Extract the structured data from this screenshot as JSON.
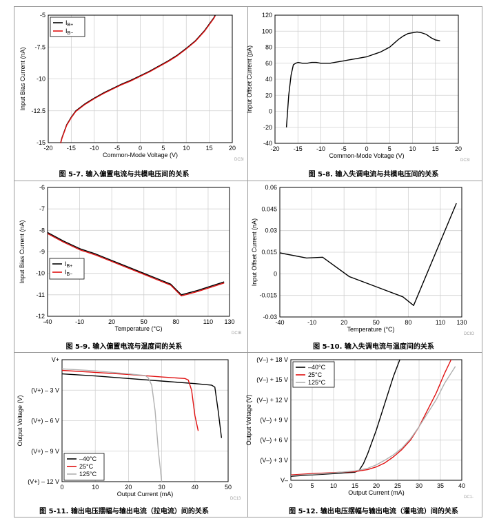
{
  "chart_data": [
    {
      "id": "c1",
      "type": "line",
      "xlabel": "Common-Mode Voltage (V)",
      "ylabel": "Input Bias Current (nA)",
      "xlim": [
        -20,
        20
      ],
      "ylim": [
        -15,
        -5
      ],
      "xticks": [
        -20,
        -15,
        -10,
        -5,
        0,
        5,
        10,
        15,
        20
      ],
      "yticks": [
        -15,
        -12.5,
        -10,
        -7.5,
        -5
      ],
      "ytick_labels": [
        "-15",
        "-12.5",
        "-10",
        "-7.5",
        "-5"
      ],
      "grid": true,
      "legend_position": "top-left",
      "code": "DC3I",
      "caption": "图 5-7. 输入偏置电流与共模电压间的关系",
      "series": [
        {
          "name": "IB+",
          "sub": "B+",
          "color": "#000000",
          "x": [
            -17.3,
            -17,
            -16,
            -15,
            -14,
            -12,
            -10,
            -8,
            -6,
            -4,
            -2,
            0,
            2,
            4,
            6,
            8,
            10,
            12,
            14,
            15,
            16,
            16.3
          ],
          "y": [
            -15,
            -14.6,
            -13.6,
            -13.0,
            -12.5,
            -11.95,
            -11.5,
            -11.1,
            -10.75,
            -10.4,
            -10.1,
            -9.75,
            -9.4,
            -9.0,
            -8.6,
            -8.15,
            -7.6,
            -7.0,
            -6.2,
            -5.7,
            -5.2,
            -5.0
          ]
        },
        {
          "name": "IB−",
          "sub": "B−",
          "color": "#e01010",
          "x": [
            -17.3,
            -17,
            -16,
            -15,
            -14,
            -12,
            -10,
            -8,
            -6,
            -4,
            -2,
            0,
            2,
            4,
            6,
            8,
            10,
            12,
            14,
            15,
            16,
            16.3
          ],
          "y": [
            -15.05,
            -14.65,
            -13.65,
            -13.05,
            -12.55,
            -12.0,
            -11.55,
            -11.15,
            -10.8,
            -10.45,
            -10.15,
            -9.8,
            -9.45,
            -9.05,
            -8.65,
            -8.2,
            -7.65,
            -7.05,
            -6.25,
            -5.75,
            -5.25,
            -5.05
          ]
        }
      ]
    },
    {
      "id": "c2",
      "type": "line",
      "xlabel": "Common-Mode Voltage (V)",
      "ylabel": "Input Offset Current (pA)",
      "xlim": [
        -20,
        20
      ],
      "ylim": [
        -40,
        120
      ],
      "xticks": [
        -20,
        -15,
        -10,
        -5,
        0,
        5,
        10,
        15,
        20
      ],
      "yticks": [
        -40,
        -20,
        0,
        20,
        40,
        60,
        80,
        100,
        120
      ],
      "ytick_labels": [
        "-40",
        "-20",
        "0",
        "20",
        "40",
        "60",
        "80",
        "100",
        "120"
      ],
      "grid": true,
      "code": "DC3I",
      "caption": "图 5-8. 输入失调电流与共模电压间的关系",
      "series": [
        {
          "color": "#000000",
          "x": [
            -17.5,
            -17,
            -16.5,
            -16,
            -15.5,
            -15,
            -14,
            -13,
            -12,
            -11,
            -10,
            -9,
            -8,
            -7,
            -6,
            -5,
            -4,
            -3,
            -2,
            -1,
            0,
            1,
            2,
            3,
            4,
            5,
            6,
            7,
            8,
            9,
            10,
            11,
            12,
            13,
            14,
            15,
            16
          ],
          "y": [
            -20,
            20,
            45,
            58,
            60,
            61,
            60,
            60,
            61,
            61,
            60,
            60,
            60,
            61,
            62,
            63,
            64,
            65,
            66,
            67,
            68,
            70,
            72,
            74,
            77,
            80,
            85,
            90,
            94,
            97,
            98,
            99,
            98,
            96,
            92,
            89,
            88
          ]
        }
      ]
    },
    {
      "id": "c3",
      "type": "line",
      "xlabel": "Temperature (°C)",
      "ylabel": "Input Bias Current (nA)",
      "xlim": [
        -40,
        130
      ],
      "ylim": [
        -12,
        -6
      ],
      "xticks": [
        -40,
        -10,
        20,
        50,
        80,
        110,
        130
      ],
      "yticks": [
        -12,
        -11,
        -10,
        -9,
        -8,
        -7,
        -6
      ],
      "ytick_labels": [
        "-12",
        "-11",
        "-10",
        "-9",
        "-8",
        "-7",
        "-6"
      ],
      "grid": true,
      "legend_position": "left",
      "code": "DCIB",
      "caption": "图 5-9. 输入偏置电流与温度间的关系",
      "series": [
        {
          "name": "IB+",
          "sub": "B+",
          "color": "#000000",
          "x": [
            -40,
            -25,
            -10,
            5,
            20,
            35,
            50,
            65,
            75,
            85,
            100,
            125
          ],
          "y": [
            -8.1,
            -8.5,
            -8.85,
            -9.1,
            -9.4,
            -9.7,
            -10.0,
            -10.3,
            -10.5,
            -11.0,
            -10.8,
            -10.4
          ]
        },
        {
          "name": "IB−",
          "sub": "B−",
          "color": "#e01010",
          "x": [
            -40,
            -25,
            -10,
            5,
            20,
            35,
            50,
            65,
            75,
            85,
            100,
            125
          ],
          "y": [
            -8.15,
            -8.55,
            -8.9,
            -9.15,
            -9.45,
            -9.75,
            -10.05,
            -10.35,
            -10.55,
            -11.05,
            -10.85,
            -10.45
          ]
        }
      ]
    },
    {
      "id": "c4",
      "type": "line",
      "xlabel": "Temperature (°C)",
      "ylabel": "Input Offset Current (nA)",
      "xlim": [
        -40,
        130
      ],
      "ylim": [
        -0.03,
        0.06
      ],
      "xticks": [
        -40,
        -10,
        20,
        50,
        80,
        110,
        130
      ],
      "yticks": [
        -0.03,
        -0.015,
        0,
        0.015,
        0.03,
        0.045,
        0.06
      ],
      "ytick_labels": [
        "-0.03",
        "-0.015",
        "0",
        "0.015",
        "0.03",
        "0.045",
        "0.06"
      ],
      "grid": true,
      "code": "DCIO",
      "caption": "图 5-10. 输入失调电流与温度间的关系",
      "series": [
        {
          "color": "#000000",
          "x": [
            -40,
            -15,
            0,
            25,
            50,
            75,
            85,
            125
          ],
          "y": [
            0.0145,
            0.011,
            0.0115,
            -0.002,
            -0.009,
            -0.016,
            -0.022,
            0.049
          ]
        }
      ]
    },
    {
      "id": "c5",
      "type": "line",
      "xlabel": "Output Current (mA)",
      "ylabel": "Output Voltage (V)",
      "xlim": [
        0,
        50
      ],
      "ylim": [
        -12,
        0
      ],
      "xticks": [
        0,
        10,
        20,
        30,
        40,
        50
      ],
      "yticks": [
        0,
        -3,
        -6,
        -9,
        -12
      ],
      "ytick_labels": [
        "V+",
        "(V+) – 3 V",
        "(V+) – 6 V",
        "(V+) – 9 V",
        "(V+) – 12 V"
      ],
      "grid": true,
      "legend_position": "bottom-left",
      "code": "DC13",
      "caption": "图 5-11. 输出电压摆幅与输出电流（拉电流）间的关系",
      "series": [
        {
          "name": "–40°C",
          "color": "#000000",
          "x": [
            0,
            10,
            20,
            30,
            40,
            45,
            46,
            47,
            48
          ],
          "y": [
            -1.4,
            -1.6,
            -1.85,
            -2.1,
            -2.35,
            -2.5,
            -2.7,
            -5.0,
            -7.7
          ]
        },
        {
          "name": "25°C",
          "color": "#e01010",
          "x": [
            0,
            10,
            20,
            30,
            37,
            38,
            39,
            40,
            41
          ],
          "y": [
            -1.05,
            -1.25,
            -1.45,
            -1.7,
            -1.85,
            -2.0,
            -3.0,
            -5.5,
            -7.0
          ]
        },
        {
          "name": "125°C",
          "color": "#b0b0b0",
          "x": [
            0,
            10,
            20,
            25,
            26,
            27,
            28,
            29,
            30
          ],
          "y": [
            -0.9,
            -1.1,
            -1.4,
            -1.55,
            -1.8,
            -2.5,
            -5.0,
            -9.0,
            -12.0
          ]
        }
      ]
    },
    {
      "id": "c6",
      "type": "line",
      "xlabel": "Output Current (mA)",
      "ylabel": "Output Voltage (V)",
      "xlim": [
        0,
        40
      ],
      "ylim": [
        0,
        18
      ],
      "xticks": [
        0,
        5,
        10,
        15,
        20,
        25,
        30,
        35,
        40
      ],
      "yticks": [
        0,
        3,
        6,
        9,
        12,
        15,
        18
      ],
      "ytick_labels": [
        "V–",
        "(V–) + 3 V",
        "(V–) + 6 V",
        "(V–) + 9 V",
        "(V–) + 12 V",
        "(V–) + 15 V",
        "(V–) + 18 V"
      ],
      "grid": true,
      "legend_position": "top-left",
      "code": "DC1-",
      "caption": "图 5-12. 输出电压摆幅与输出电流（灌电流）间的关系",
      "series": [
        {
          "name": "–40°C",
          "color": "#000000",
          "x": [
            0,
            5,
            10,
            15,
            16,
            17,
            18,
            20,
            22,
            24,
            25.5
          ],
          "y": [
            0.6,
            0.8,
            1.0,
            1.2,
            1.5,
            2.5,
            4.0,
            7.5,
            11.5,
            15.5,
            18.0
          ]
        },
        {
          "name": "25°C",
          "color": "#e01010",
          "x": [
            0,
            5,
            10,
            15,
            18,
            20,
            22,
            24,
            26,
            28,
            30,
            32,
            34,
            36,
            37.5
          ],
          "y": [
            0.8,
            1.0,
            1.15,
            1.3,
            1.6,
            2.0,
            2.6,
            3.5,
            4.6,
            6.0,
            8.0,
            10.5,
            13.0,
            16.0,
            18.0
          ]
        },
        {
          "name": "125°C",
          "color": "#b0b0b0",
          "x": [
            0,
            5,
            10,
            15,
            18,
            20,
            22,
            24,
            26,
            28,
            30,
            32,
            34,
            36,
            38.5
          ],
          "y": [
            0.7,
            0.9,
            1.1,
            1.4,
            1.8,
            2.3,
            3.0,
            3.8,
            4.8,
            6.2,
            8.0,
            10.0,
            12.0,
            14.5,
            17.0
          ]
        }
      ]
    }
  ]
}
